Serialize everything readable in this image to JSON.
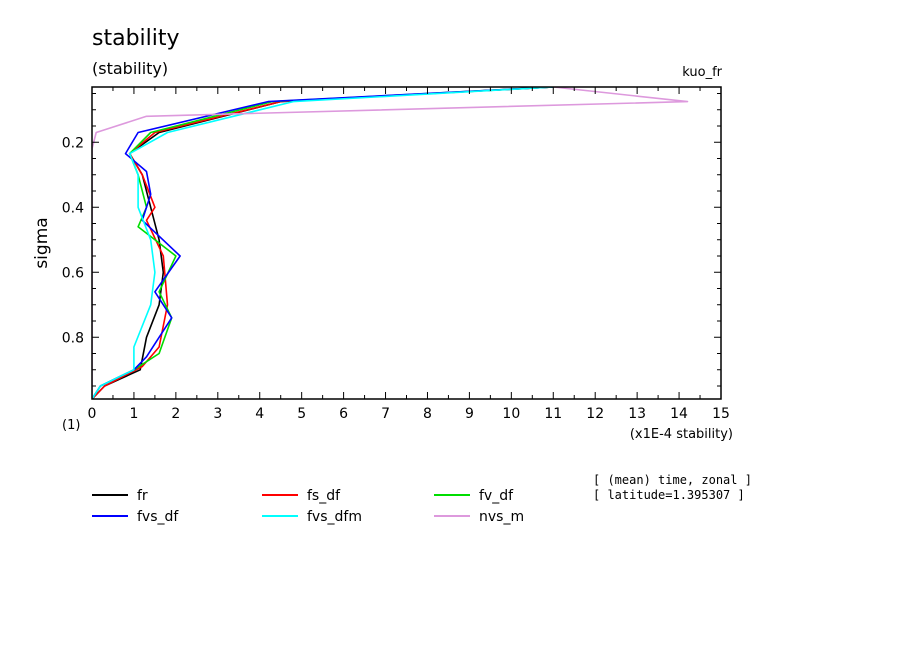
{
  "header": {
    "title": "stability",
    "subtitle": "(stability)",
    "experiment": "kuo_fr"
  },
  "notes": [
    "[ (mean) time, zonal ]",
    "[ latitude=1.395307 ]"
  ],
  "chart_data": {
    "type": "line",
    "title": "stability",
    "subtitle": "(stability)",
    "ylabel": "sigma",
    "y_unit_label": "(1)",
    "xlabel": "(x1E-4 stability)",
    "xlim": [
      0,
      15
    ],
    "ylim": [
      0.03,
      0.99
    ],
    "y_inverted": true,
    "x_ticks": [
      0,
      1,
      2,
      3,
      4,
      5,
      6,
      7,
      8,
      9,
      10,
      11,
      12,
      13,
      14,
      15
    ],
    "y_ticks": [
      0.2,
      0.4,
      0.6,
      0.8
    ],
    "legend_position": "bottom",
    "series": [
      {
        "name": "fr",
        "color": "#000000",
        "points": [
          [
            11.0,
            0.03
          ],
          [
            4.5,
            0.075
          ],
          [
            1.6,
            0.17
          ],
          [
            0.9,
            0.235
          ],
          [
            1.2,
            0.3
          ],
          [
            1.4,
            0.4
          ],
          [
            1.6,
            0.5
          ],
          [
            1.7,
            0.6
          ],
          [
            1.6,
            0.7
          ],
          [
            1.3,
            0.8
          ],
          [
            1.15,
            0.9
          ],
          [
            0.3,
            0.95
          ],
          [
            0.0,
            0.99
          ]
        ]
      },
      {
        "name": "fs_df",
        "color": "#ff0000",
        "points": [
          [
            11.0,
            0.03
          ],
          [
            4.5,
            0.075
          ],
          [
            1.5,
            0.17
          ],
          [
            0.9,
            0.235
          ],
          [
            1.2,
            0.3
          ],
          [
            1.5,
            0.4
          ],
          [
            1.3,
            0.44
          ],
          [
            1.7,
            0.55
          ],
          [
            1.8,
            0.7
          ],
          [
            1.6,
            0.83
          ],
          [
            1.2,
            0.89
          ],
          [
            0.3,
            0.95
          ],
          [
            0.0,
            0.99
          ]
        ]
      },
      {
        "name": "fv_df",
        "color": "#00dd00",
        "points": [
          [
            11.0,
            0.03
          ],
          [
            4.3,
            0.075
          ],
          [
            1.4,
            0.17
          ],
          [
            0.9,
            0.235
          ],
          [
            1.1,
            0.3
          ],
          [
            1.3,
            0.4
          ],
          [
            1.1,
            0.46
          ],
          [
            2.0,
            0.55
          ],
          [
            1.6,
            0.66
          ],
          [
            1.9,
            0.74
          ],
          [
            1.6,
            0.85
          ],
          [
            1.0,
            0.9
          ],
          [
            0.2,
            0.95
          ],
          [
            0.0,
            0.99
          ]
        ]
      },
      {
        "name": "fvs_df",
        "color": "#0000ff",
        "points": [
          [
            11.0,
            0.03
          ],
          [
            4.2,
            0.075
          ],
          [
            1.1,
            0.17
          ],
          [
            0.8,
            0.235
          ],
          [
            1.3,
            0.29
          ],
          [
            1.4,
            0.36
          ],
          [
            1.2,
            0.44
          ],
          [
            2.1,
            0.55
          ],
          [
            1.5,
            0.66
          ],
          [
            1.9,
            0.74
          ],
          [
            1.3,
            0.86
          ],
          [
            1.0,
            0.9
          ],
          [
            0.2,
            0.95
          ],
          [
            0.0,
            0.99
          ]
        ]
      },
      {
        "name": "fvs_dfm",
        "color": "#00ffff",
        "points": [
          [
            11.0,
            0.03
          ],
          [
            4.8,
            0.075
          ],
          [
            1.8,
            0.17
          ],
          [
            0.9,
            0.235
          ],
          [
            1.1,
            0.3
          ],
          [
            1.1,
            0.4
          ],
          [
            1.4,
            0.5
          ],
          [
            1.5,
            0.6
          ],
          [
            1.4,
            0.7
          ],
          [
            1.0,
            0.83
          ],
          [
            1.0,
            0.9
          ],
          [
            0.2,
            0.95
          ],
          [
            0.0,
            0.99
          ]
        ]
      },
      {
        "name": "nvs_m",
        "color": "#dd99dd",
        "points": [
          [
            11.0,
            0.03
          ],
          [
            14.2,
            0.075
          ],
          [
            1.3,
            0.12
          ],
          [
            0.1,
            0.17
          ],
          [
            0.0,
            0.22
          ],
          [
            0.0,
            0.99
          ]
        ]
      }
    ]
  }
}
